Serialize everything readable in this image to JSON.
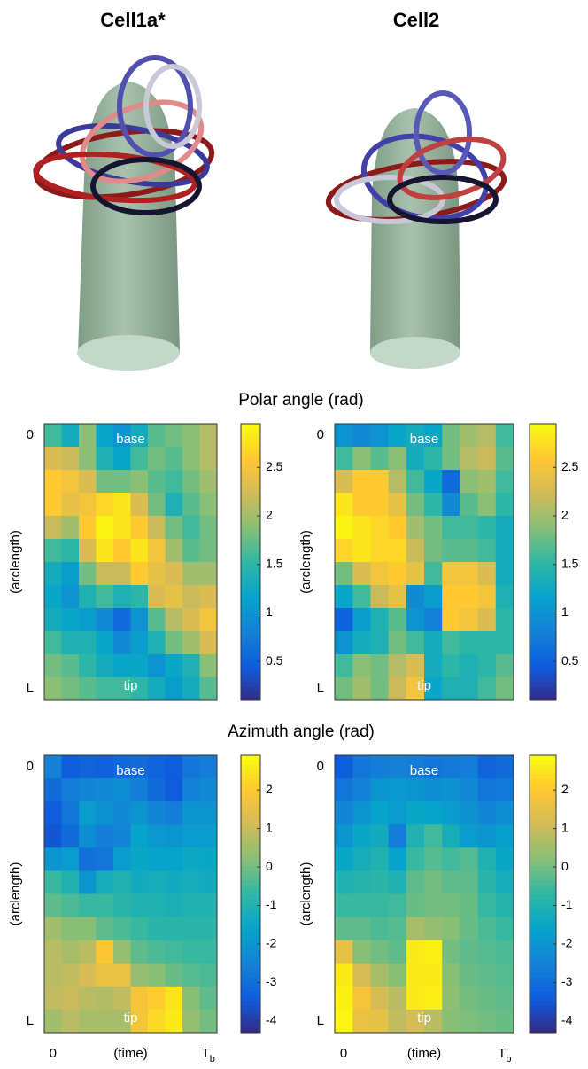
{
  "figure": {
    "column_titles": [
      "Cell1a*",
      "Cell2"
    ],
    "row_titles": [
      "Polar angle (rad)",
      "Azimuth angle (rad)"
    ]
  },
  "chart_data": [
    {
      "type": "heatmap",
      "colormap": "parula",
      "ylabel": "(arclength)",
      "annotations": [
        "base",
        "tip"
      ],
      "rows": [
        "0",
        null,
        null,
        null,
        null,
        null,
        null,
        null,
        null,
        null,
        null,
        "L"
      ],
      "zlim": [
        0.1,
        2.95
      ],
      "zticks": [
        0.5,
        1,
        1.5,
        2,
        2.5
      ],
      "values": [
        [
          1.6,
          1.3,
          1.9,
          1.2,
          1.0,
          1.3,
          1.7,
          1.8,
          1.9,
          2.1
        ],
        [
          2.3,
          2.2,
          1.9,
          1.4,
          1.2,
          1.6,
          1.8,
          1.7,
          1.9,
          2.1
        ],
        [
          2.6,
          2.5,
          2.3,
          1.8,
          1.8,
          1.9,
          1.7,
          1.6,
          1.8,
          2.0
        ],
        [
          2.6,
          2.4,
          2.5,
          2.7,
          2.8,
          2.3,
          1.8,
          1.4,
          1.7,
          1.9
        ],
        [
          2.2,
          2.0,
          2.6,
          2.9,
          2.8,
          2.6,
          2.2,
          1.8,
          1.6,
          1.8
        ],
        [
          1.6,
          1.5,
          2.3,
          2.8,
          2.6,
          2.8,
          2.5,
          2.0,
          1.7,
          1.8
        ],
        [
          1.3,
          1.1,
          1.8,
          2.2,
          2.2,
          2.6,
          2.4,
          2.3,
          2.0,
          2.0
        ],
        [
          1.2,
          1.0,
          1.4,
          1.6,
          1.4,
          1.5,
          2.3,
          2.4,
          2.2,
          2.3
        ],
        [
          1.3,
          1.2,
          1.1,
          0.9,
          0.6,
          1.0,
          1.7,
          2.1,
          2.3,
          2.5
        ],
        [
          1.6,
          1.4,
          1.4,
          1.2,
          0.9,
          1.1,
          1.4,
          1.8,
          2.0,
          2.3
        ],
        [
          1.8,
          1.7,
          1.5,
          1.3,
          1.2,
          1.2,
          1.0,
          1.2,
          1.4,
          1.9
        ],
        [
          1.9,
          1.8,
          1.7,
          1.6,
          1.6,
          1.5,
          1.3,
          1.1,
          1.3,
          1.7
        ]
      ]
    },
    {
      "type": "heatmap",
      "colormap": "parula",
      "ylabel": "(arclength)",
      "annotations": [
        "base",
        "tip"
      ],
      "rows": [
        "0",
        null,
        null,
        null,
        null,
        null,
        null,
        null,
        null,
        null,
        null,
        "L"
      ],
      "zlim": [
        0.1,
        2.95
      ],
      "zticks": [
        0.5,
        1,
        1.5,
        2,
        2.5
      ],
      "values": [
        [
          1.0,
          0.9,
          1.0,
          1.2,
          1.3,
          1.2,
          1.8,
          2.0,
          2.1,
          1.6
        ],
        [
          1.6,
          1.9,
          1.7,
          1.9,
          1.3,
          1.5,
          1.8,
          2.1,
          2.2,
          1.7
        ],
        [
          2.3,
          2.6,
          2.6,
          2.1,
          1.6,
          1.2,
          0.6,
          1.9,
          2.0,
          1.6
        ],
        [
          2.8,
          2.6,
          2.6,
          2.4,
          1.8,
          1.5,
          0.9,
          1.7,
          1.9,
          1.5
        ],
        [
          2.9,
          2.8,
          2.7,
          2.6,
          2.0,
          1.8,
          1.6,
          1.6,
          1.5,
          1.3
        ],
        [
          2.7,
          2.8,
          2.7,
          2.7,
          2.2,
          1.8,
          1.7,
          1.7,
          1.6,
          1.3
        ],
        [
          1.8,
          2.3,
          2.5,
          2.6,
          2.4,
          1.6,
          2.5,
          2.5,
          2.3,
          1.3
        ],
        [
          1.2,
          1.6,
          2.2,
          2.4,
          0.9,
          1.1,
          2.6,
          2.6,
          2.5,
          1.4
        ],
        [
          0.5,
          1.1,
          1.4,
          1.7,
          1.0,
          0.8,
          2.6,
          2.5,
          2.3,
          1.5
        ],
        [
          1.0,
          1.3,
          1.4,
          1.8,
          1.6,
          1.3,
          1.6,
          1.5,
          1.5,
          1.5
        ],
        [
          1.6,
          1.9,
          1.8,
          2.1,
          2.3,
          1.3,
          1.5,
          1.4,
          1.5,
          1.7
        ],
        [
          1.8,
          2.0,
          1.8,
          2.2,
          2.5,
          1.2,
          1.4,
          1.4,
          1.6,
          1.8
        ]
      ]
    },
    {
      "type": "heatmap",
      "colormap": "parula",
      "ylabel": "(arclength)",
      "xlabel": "(time)",
      "annotations": [
        "base",
        "tip"
      ],
      "rows": [
        "0",
        null,
        null,
        null,
        null,
        null,
        null,
        null,
        null,
        null,
        null,
        "L"
      ],
      "columns": [
        "0",
        null,
        null,
        null,
        null,
        null,
        null,
        null,
        null,
        "T_b"
      ],
      "zlim": [
        -4.3,
        2.9
      ],
      "zticks": [
        -4,
        -3,
        -2,
        -1,
        0,
        1,
        2
      ],
      "values": [
        [
          -2.5,
          -3.4,
          -3.2,
          -3.3,
          -3.1,
          -3.0,
          -3.2,
          -3.4,
          -2.8,
          -2.6
        ],
        [
          -3.0,
          -2.6,
          -2.4,
          -2.3,
          -2.2,
          -2.6,
          -3.0,
          -3.4,
          -2.5,
          -2.3
        ],
        [
          -3.4,
          -2.8,
          -1.8,
          -2.1,
          -2.3,
          -2.0,
          -2.4,
          -2.6,
          -2.0,
          -2.0
        ],
        [
          -3.5,
          -3.0,
          -2.2,
          -2.6,
          -2.4,
          -1.6,
          -1.9,
          -2.0,
          -1.8,
          -1.8
        ],
        [
          -2.0,
          -1.8,
          -2.9,
          -2.8,
          -1.8,
          -1.5,
          -1.6,
          -1.6,
          -1.4,
          -1.5
        ],
        [
          -0.6,
          -1.0,
          -2.0,
          -1.2,
          -1.0,
          -1.3,
          -1.2,
          -1.3,
          -1.2,
          -1.3
        ],
        [
          -0.2,
          -0.4,
          -0.6,
          -0.6,
          -0.8,
          -1.0,
          -1.0,
          -1.1,
          -1.0,
          -1.0
        ],
        [
          0.5,
          0.2,
          0.2,
          -0.2,
          -0.4,
          -0.6,
          -0.8,
          -0.8,
          -0.8,
          -0.8
        ],
        [
          0.8,
          0.6,
          0.8,
          1.9,
          0.4,
          -0.2,
          -0.4,
          -0.5,
          -0.6,
          -0.6
        ],
        [
          0.8,
          0.9,
          1.2,
          1.6,
          1.6,
          0.4,
          0.2,
          -0.1,
          -0.3,
          -0.4
        ],
        [
          0.9,
          1.0,
          0.8,
          0.7,
          0.9,
          1.8,
          2.1,
          2.5,
          0.2,
          -0.2
        ],
        [
          0.5,
          0.8,
          0.6,
          0.6,
          0.6,
          1.8,
          2.3,
          2.6,
          0.4,
          0.0
        ]
      ]
    },
    {
      "type": "heatmap",
      "colormap": "parula",
      "ylabel": "(arclength)",
      "xlabel": "(time)",
      "annotations": [
        "base",
        "tip"
      ],
      "rows": [
        "0",
        null,
        null,
        null,
        null,
        null,
        null,
        null,
        null,
        null,
        null,
        "L"
      ],
      "columns": [
        "0",
        null,
        null,
        null,
        null,
        null,
        null,
        null,
        null,
        "T_b"
      ],
      "zlim": [
        -4.3,
        2.9
      ],
      "zticks": [
        -4,
        -3,
        -2,
        -1,
        0,
        1,
        2
      ],
      "values": [
        [
          -3.4,
          -2.8,
          -2.6,
          -2.5,
          -2.6,
          -2.8,
          -2.7,
          -2.6,
          -3.2,
          -3.0
        ],
        [
          -2.8,
          -2.5,
          -2.0,
          -1.9,
          -2.0,
          -2.2,
          -2.1,
          -2.3,
          -2.8,
          -2.7
        ],
        [
          -2.4,
          -2.0,
          -1.6,
          -1.8,
          -1.5,
          -1.6,
          -1.8,
          -2.1,
          -2.4,
          -2.2
        ],
        [
          -2.0,
          -1.5,
          -1.3,
          -2.6,
          -1.0,
          -0.5,
          -1.2,
          -1.8,
          -2.0,
          -1.7
        ],
        [
          -1.5,
          -1.2,
          -1.0,
          -1.6,
          -0.6,
          -0.3,
          -0.5,
          -0.3,
          -1.0,
          -1.5
        ],
        [
          -1.0,
          -0.9,
          -0.8,
          -1.0,
          -0.2,
          0.0,
          -0.2,
          -0.2,
          -0.8,
          -1.2
        ],
        [
          -0.6,
          -0.6,
          -0.6,
          -0.5,
          -0.1,
          0.0,
          0.0,
          -0.1,
          -0.6,
          -0.9
        ],
        [
          -0.2,
          -0.2,
          -0.4,
          -0.3,
          0.6,
          0.4,
          0.2,
          -0.1,
          -0.4,
          -0.6
        ],
        [
          1.5,
          0.2,
          0.0,
          -0.2,
          2.6,
          2.7,
          0.0,
          -0.2,
          -0.3,
          -0.4
        ],
        [
          2.6,
          1.2,
          0.6,
          0.2,
          2.6,
          2.6,
          0.2,
          -0.1,
          -0.2,
          -0.3
        ],
        [
          2.7,
          1.8,
          1.2,
          0.8,
          2.6,
          2.7,
          0.3,
          0.0,
          -0.1,
          -0.2
        ],
        [
          2.8,
          1.6,
          1.5,
          0.9,
          1.2,
          0.8,
          0.2,
          0.1,
          0.0,
          -0.1
        ]
      ]
    }
  ]
}
